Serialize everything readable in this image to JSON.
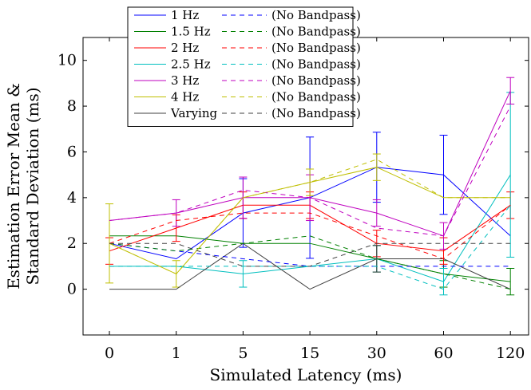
{
  "chart_data": {
    "type": "line",
    "title": "",
    "xlabel": "Simulated Latency (ms)",
    "ylabel_lines": [
      "Estimation Error Mean &",
      "Standard Deviation (ms)"
    ],
    "categories": [
      "0",
      "1",
      "5",
      "15",
      "30",
      "60",
      "120"
    ],
    "ylim": [
      -2,
      11
    ],
    "yticks": [
      0,
      2,
      4,
      6,
      8,
      10
    ],
    "grid": false,
    "legend_position": "top-left",
    "series": [
      {
        "name": "1 Hz",
        "color": "#0000ff",
        "dashed": false,
        "values": [
          2.0,
          1.33,
          3.33,
          4.0,
          5.33,
          5.0,
          2.33
        ],
        "err": [
          0,
          0,
          1.5,
          2.65,
          1.53,
          1.73,
          0
        ]
      },
      {
        "name": "1.5 Hz",
        "color": "#008000",
        "dashed": false,
        "values": [
          2.33,
          2.33,
          2.0,
          2.0,
          1.33,
          0.67,
          0.33
        ],
        "err": [
          0,
          0,
          0,
          0,
          0.58,
          0.58,
          0.58
        ]
      },
      {
        "name": "2 Hz",
        "color": "#ff0000",
        "dashed": false,
        "values": [
          1.67,
          2.67,
          3.67,
          3.67,
          2.0,
          1.67,
          3.67
        ],
        "err": [
          0.58,
          0.58,
          0.58,
          0.58,
          0.58,
          0.58,
          0.58
        ]
      },
      {
        "name": "2.5 Hz",
        "color": "#00bfbf",
        "dashed": false,
        "values": [
          1.0,
          1.0,
          0.67,
          1.0,
          1.33,
          0.33,
          5.0
        ],
        "err": [
          0,
          0,
          0.58,
          0,
          0.58,
          0.58,
          3.6
        ]
      },
      {
        "name": "3 Hz",
        "color": "#bf00bf",
        "dashed": false,
        "values": [
          3.0,
          3.33,
          4.0,
          4.0,
          3.33,
          2.33,
          8.67
        ],
        "err": [
          0,
          0.58,
          0.9,
          1.0,
          0.58,
          0.58,
          0.58
        ]
      },
      {
        "name": "4 Hz",
        "color": "#bfbf00",
        "dashed": false,
        "values": [
          2.0,
          0.67,
          4.0,
          4.67,
          5.33,
          4.0,
          4.0
        ],
        "err": [
          1.73,
          0.58,
          0,
          0.58,
          0.58,
          0,
          0
        ]
      },
      {
        "name": "Varying",
        "color": "#404040",
        "dashed": false,
        "values": [
          0.0,
          0.0,
          2.0,
          0.0,
          1.33,
          1.33,
          0.0
        ],
        "err": [
          0,
          0,
          0,
          0,
          0.58,
          0,
          0
        ]
      },
      {
        "name": "(No Bandpass)",
        "color": "#0000ff",
        "dashed": true,
        "values": [
          2.0,
          1.67,
          1.33,
          1.0,
          1.0,
          1.0,
          1.0
        ],
        "err": [
          0,
          0,
          0,
          0,
          0,
          0,
          0
        ]
      },
      {
        "name": "(No Bandpass)",
        "color": "#008000",
        "dashed": true,
        "values": [
          2.0,
          1.67,
          2.0,
          2.33,
          1.33,
          0.67,
          0.0
        ],
        "err": [
          0,
          0,
          0,
          0,
          0,
          0,
          0
        ]
      },
      {
        "name": "(No Bandpass)",
        "color": "#ff0000",
        "dashed": true,
        "values": [
          2.0,
          3.0,
          3.33,
          3.33,
          2.33,
          1.33,
          3.67
        ],
        "err": [
          0,
          0,
          0,
          0,
          0,
          0,
          0
        ]
      },
      {
        "name": "(No Bandpass)",
        "color": "#00bfbf",
        "dashed": true,
        "values": [
          1.0,
          1.0,
          1.0,
          1.0,
          1.0,
          0.0,
          3.67
        ],
        "err": [
          0,
          0,
          0,
          0,
          0,
          0,
          0
        ]
      },
      {
        "name": "(No Bandpass)",
        "color": "#bf00bf",
        "dashed": true,
        "values": [
          3.0,
          3.33,
          4.33,
          4.0,
          2.67,
          2.33,
          8.0
        ],
        "err": [
          0,
          0,
          0,
          0,
          0,
          0,
          0
        ]
      },
      {
        "name": "(No Bandpass)",
        "color": "#bfbf00",
        "dashed": true,
        "values": [
          2.0,
          0.67,
          4.0,
          4.67,
          5.67,
          4.0,
          4.0
        ],
        "err": [
          0,
          0,
          0,
          0,
          0,
          0,
          0
        ]
      },
      {
        "name": "(No Bandpass)",
        "color": "#404040",
        "dashed": true,
        "values": [
          2.0,
          2.0,
          1.0,
          1.0,
          2.0,
          2.0,
          2.0
        ],
        "err": [
          0,
          0,
          0,
          0,
          0,
          0,
          0
        ]
      }
    ]
  }
}
